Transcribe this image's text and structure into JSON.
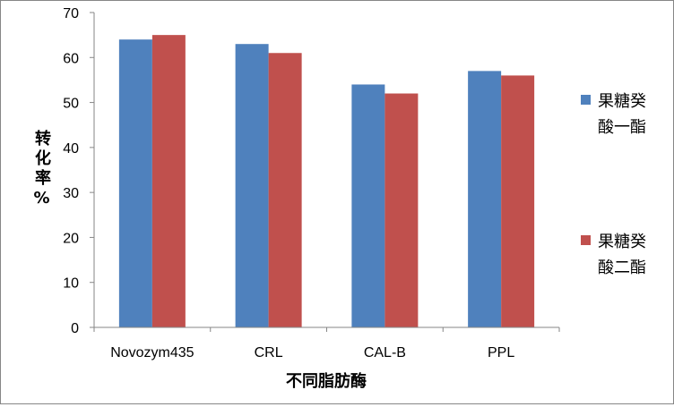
{
  "chart_data": {
    "type": "bar",
    "categories": [
      "Novozym435",
      "CRL",
      "CAL-B",
      "PPL"
    ],
    "series": [
      {
        "name": "果糖癸酸一酯",
        "name_lines": [
          "果糖癸",
          "酸一酯"
        ],
        "color": "#4F81BD",
        "values": [
          64,
          63,
          54,
          57
        ]
      },
      {
        "name": "果糖癸酸二酯",
        "name_lines": [
          "果糖癸",
          "酸二酯"
        ],
        "color": "#C0504D",
        "values": [
          65,
          61,
          52,
          56
        ]
      }
    ],
    "title": "",
    "xlabel": "不同脂肪酶",
    "ylabel": "转化率%",
    "ylabel_chars": [
      "转",
      "化",
      "率",
      "%"
    ],
    "ylim": [
      0,
      70
    ],
    "yticks": [
      0,
      10,
      20,
      30,
      40,
      50,
      60,
      70
    ],
    "grid": false,
    "legend": "right"
  }
}
